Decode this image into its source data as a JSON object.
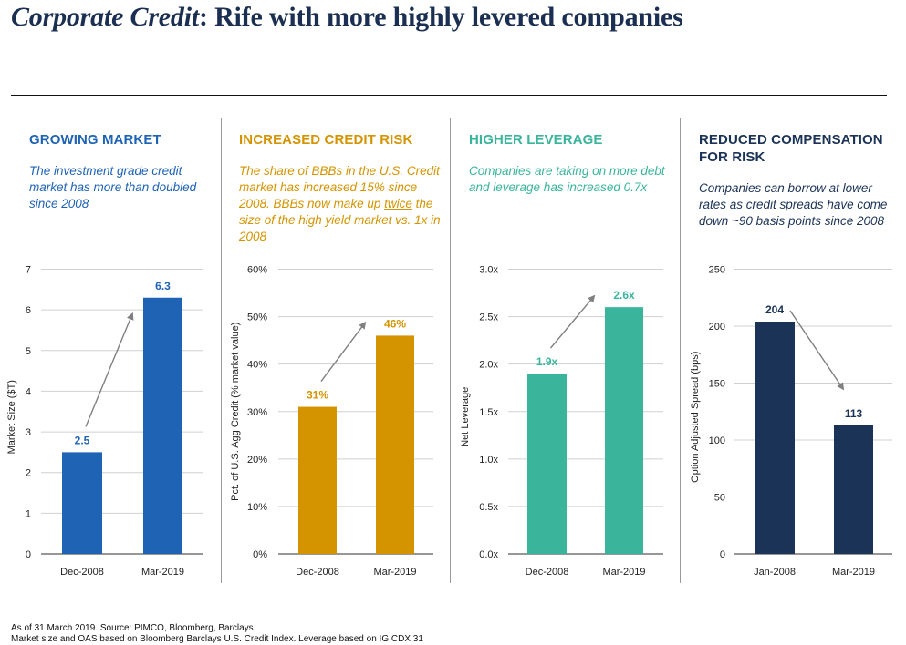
{
  "header": {
    "title_italic": "Corporate Credit",
    "title_rest": ": Rife with more highly levered companies"
  },
  "panels": [
    {
      "heading": "GROWING MARKET",
      "description": "The investment grade credit market has more than doubled since 2008",
      "color": "#1f63b5"
    },
    {
      "heading": "INCREASED CREDIT RISK",
      "description_parts": [
        "The share of BBBs in the U.S. Credit market has increased 15% since 2008. BBBs now make up ",
        "twice",
        " the size of the high yield market vs. 1x in 2008"
      ],
      "color": "#d39400"
    },
    {
      "heading": "HIGHER LEVERAGE",
      "description": "Companies are taking on more debt and leverage has increased 0.7x",
      "color": "#3ab59c"
    },
    {
      "heading": "REDUCED COMPENSATION FOR RISK",
      "description": "Companies can borrow at lower rates as credit spreads have come down ~90 basis points since 2008",
      "color": "#1b3357"
    }
  ],
  "chart_data": [
    {
      "type": "bar",
      "title": "GROWING MARKET",
      "categories": [
        "Dec-2008",
        "Mar-2019"
      ],
      "values": [
        2.5,
        6.3
      ],
      "data_labels": [
        "2.5",
        "6.3"
      ],
      "ylabel": "Market Size ($T)",
      "xlabel": "",
      "ylim": [
        0,
        7
      ],
      "yticks": [
        0,
        1,
        2,
        3,
        4,
        5,
        6,
        7
      ],
      "ytick_labels": [
        "0",
        "1",
        "2",
        "3",
        "4",
        "5",
        "6",
        "7"
      ],
      "grid": true,
      "bar_color": "#1f63b5",
      "label_color": "#1f63b5",
      "annotation": "arrow-up"
    },
    {
      "type": "bar",
      "title": "INCREASED CREDIT RISK",
      "categories": [
        "Dec-2008",
        "Mar-2019"
      ],
      "values": [
        31,
        46
      ],
      "data_labels": [
        "31%",
        "46%"
      ],
      "ylabel": "Pct. of U.S. Agg Credit (% market value)",
      "xlabel": "",
      "ylim": [
        0,
        60
      ],
      "yticks": [
        0,
        10,
        20,
        30,
        40,
        50,
        60
      ],
      "ytick_labels": [
        "0%",
        "10%",
        "20%",
        "30%",
        "40%",
        "50%",
        "60%"
      ],
      "grid": true,
      "bar_color": "#d39400",
      "label_color": "#d39400",
      "annotation": "arrow-up"
    },
    {
      "type": "bar",
      "title": "HIGHER LEVERAGE",
      "categories": [
        "Dec-2008",
        "Mar-2019"
      ],
      "values": [
        1.9,
        2.6
      ],
      "data_labels": [
        "1.9x",
        "2.6x"
      ],
      "ylabel": "Net Leverage",
      "xlabel": "",
      "ylim": [
        0,
        3
      ],
      "yticks": [
        0,
        0.5,
        1,
        1.5,
        2,
        2.5,
        3
      ],
      "ytick_labels": [
        "0.0x",
        "0.5x",
        "1.0x",
        "1.5x",
        "2.0x",
        "2.5x",
        "3.0x"
      ],
      "grid": true,
      "bar_color": "#3ab59c",
      "label_color": "#3ab59c",
      "annotation": "arrow-up"
    },
    {
      "type": "bar",
      "title": "REDUCED COMPENSATION FOR RISK",
      "categories": [
        "Jan-2008",
        "Mar-2019"
      ],
      "values": [
        204,
        113
      ],
      "data_labels": [
        "204",
        "113"
      ],
      "ylabel": "Option Adjusted Spread (bps)",
      "xlabel": "",
      "ylim": [
        0,
        250
      ],
      "yticks": [
        0,
        50,
        100,
        150,
        200,
        250
      ],
      "ytick_labels": [
        "0",
        "50",
        "100",
        "150",
        "200",
        "250"
      ],
      "grid": true,
      "bar_color": "#1b3357",
      "label_color": "#1b3357",
      "annotation": "arrow-down"
    }
  ],
  "footer": {
    "line1": "As of 31 March 2019. Source: PIMCO, Bloomberg, Barclays",
    "line2": "Market size and OAS based on Bloomberg Barclays U.S. Credit Index. Leverage based on IG CDX 31"
  }
}
